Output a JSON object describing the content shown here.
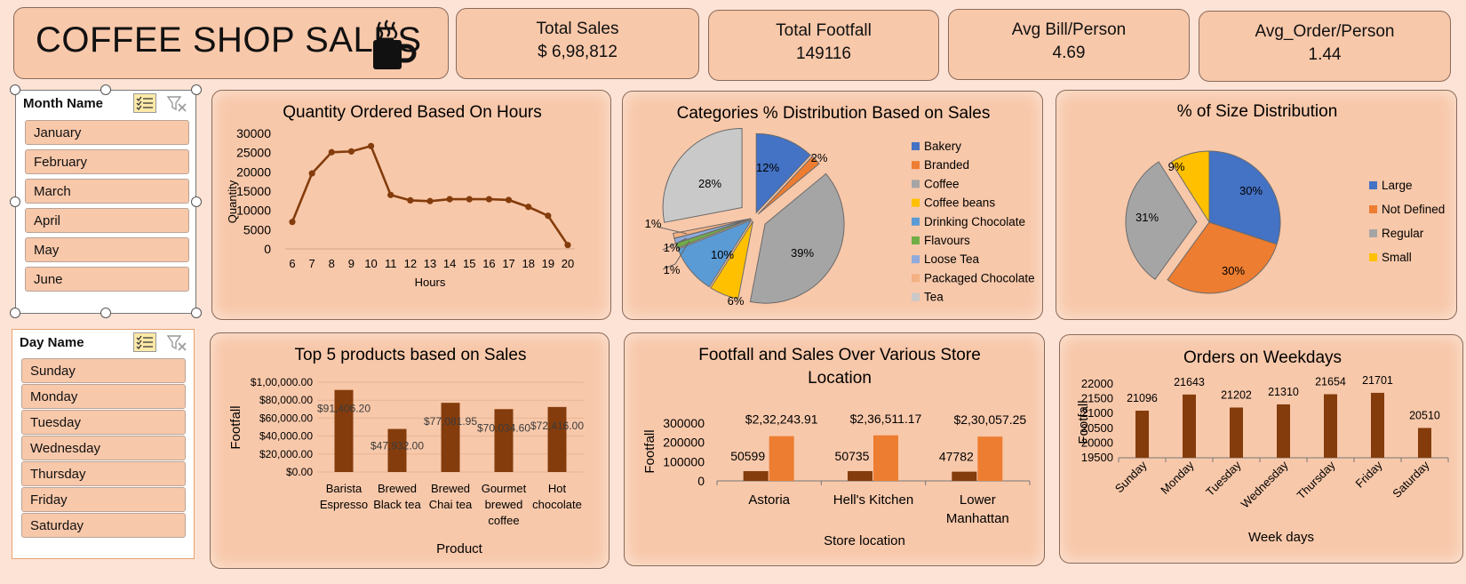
{
  "header": {
    "title": "COFFEE SHOP SALES",
    "icon": "coffee-cup-icon"
  },
  "kpis": [
    {
      "label": "Total Sales",
      "value": "$ 6,98,812"
    },
    {
      "label": "Total Footfall",
      "value": "149116"
    },
    {
      "label": "Avg Bill/Person",
      "value": "4.69"
    },
    {
      "label": "Avg_Order/Person",
      "value": "1.44"
    }
  ],
  "slicers": {
    "month": {
      "title": "Month Name",
      "items": [
        "January",
        "February",
        "March",
        "April",
        "May",
        "June"
      ]
    },
    "day": {
      "title": "Day Name",
      "items": [
        "Sunday",
        "Monday",
        "Tuesday",
        "Wednesday",
        "Thursday",
        "Friday",
        "Saturday"
      ]
    }
  },
  "colors": {
    "accent": "#843c0c",
    "orange": "#ed7d31",
    "panel": "#f8c8aa",
    "background": "#fde3d5"
  },
  "chart_data": [
    {
      "id": "hours",
      "type": "line",
      "title": "Quantity Ordered Based On Hours",
      "xlabel": "Hours",
      "ylabel": "Quantity",
      "x": [
        6,
        7,
        8,
        9,
        10,
        11,
        12,
        13,
        14,
        15,
        16,
        17,
        18,
        19,
        20
      ],
      "values": [
        7000,
        19600,
        25100,
        25300,
        26700,
        14000,
        12600,
        12400,
        12900,
        12900,
        12900,
        12700,
        10900,
        8600,
        1000
      ],
      "yticks": [
        "0",
        "5000",
        "10000",
        "15000",
        "20000",
        "25000",
        "30000"
      ],
      "ylim": [
        0,
        30000
      ]
    },
    {
      "id": "categories",
      "type": "pie",
      "title": "Categories % Distribution Based on Sales",
      "labels": [
        "Bakery",
        "Branded",
        "Coffee",
        "Coffee beans",
        "Drinking Chocolate",
        "Flavours",
        "Loose Tea",
        "Packaged Chocolate",
        "Tea"
      ],
      "values": [
        12,
        2,
        39,
        6,
        10,
        1,
        1,
        1,
        28
      ],
      "data_labels": [
        "12%",
        "2%",
        "39%",
        "6%",
        "10%",
        "1%",
        "1%",
        "1%",
        "28%"
      ],
      "colors": [
        "#4472c4",
        "#ed7d31",
        "#a5a5a5",
        "#ffc000",
        "#5b9bd5",
        "#70ad47",
        "#8faadc",
        "#f4b183",
        "#c9c9c9"
      ],
      "legend": "right"
    },
    {
      "id": "sizes",
      "type": "pie",
      "title": "% of Size Distribution",
      "labels": [
        "Large",
        "Not Defined",
        "Regular",
        "Small"
      ],
      "values": [
        30,
        30,
        31,
        9
      ],
      "data_labels": [
        "30%",
        "30%",
        "31%",
        "9%"
      ],
      "colors": [
        "#4472c4",
        "#ed7d31",
        "#a5a5a5",
        "#ffc000"
      ],
      "legend": "right"
    },
    {
      "id": "products",
      "type": "bar",
      "title": "Top 5 products based on Sales",
      "xlabel": "Product",
      "ylabel": "Footfall",
      "categories": [
        "Barista Espresso",
        "Brewed Black tea",
        "Brewed Chai tea",
        "Gourmet brewed coffee",
        "Hot chocolate"
      ],
      "category_lines": [
        [
          "Barista",
          "Espresso"
        ],
        [
          "Brewed",
          "Black tea"
        ],
        [
          "Brewed",
          "Chai tea"
        ],
        [
          "Gourmet",
          "brewed",
          "coffee"
        ],
        [
          "Hot",
          "chocolate"
        ]
      ],
      "values": [
        91406.2,
        47932.0,
        77081.95,
        70034.6,
        72416.0
      ],
      "data_labels": [
        "$91,406.20",
        "$47,932.00",
        "$77,081.95",
        "$70,034.60",
        "$72,416.00"
      ],
      "yticks": [
        "$0.00",
        "$20,000.00",
        "$40,000.00",
        "$60,000.00",
        "$80,000.00",
        "$1,00,000.00"
      ],
      "ylim": [
        0,
        100000
      ]
    },
    {
      "id": "stores",
      "type": "bar",
      "title": "Footfall and Sales Over Various Store Location",
      "title_lines": [
        "Footfall and Sales Over Various Store",
        "Location"
      ],
      "xlabel": "Store location",
      "ylabel": "Footfall",
      "categories": [
        "Astoria",
        "Hell's Kitchen",
        "Lower Manhattan"
      ],
      "category_lines": [
        [
          "Astoria"
        ],
        [
          "Hell's Kitchen"
        ],
        [
          "Lower",
          "Manhattan"
        ]
      ],
      "series": [
        {
          "values": [
            50599,
            50735,
            47782
          ],
          "data_labels": [
            "50599",
            "50735",
            "47782"
          ],
          "color": "#843c0c"
        },
        {
          "values": [
            232243.91,
            236511.17,
            230057.25
          ],
          "data_labels": [
            "$2,32,243.91",
            "$2,36,511.17",
            "$2,30,057.25"
          ],
          "color": "#ed7d31"
        }
      ],
      "yticks": [
        "0",
        "100000",
        "200000",
        "300000"
      ],
      "ylim": [
        0,
        300000
      ]
    },
    {
      "id": "weekdays",
      "type": "bar",
      "title": "Orders on Weekdays",
      "xlabel": "Week days",
      "ylabel": "Footfall",
      "categories": [
        "Sunday",
        "Monday",
        "Tuesday",
        "Wednesday",
        "Thursday",
        "Friday",
        "Saturday"
      ],
      "values": [
        21096,
        21643,
        21202,
        21310,
        21654,
        21701,
        20510
      ],
      "yticks": [
        "19500",
        "20000",
        "20500",
        "21000",
        "21500",
        "22000"
      ],
      "ylim": [
        19500,
        22000
      ]
    }
  ]
}
